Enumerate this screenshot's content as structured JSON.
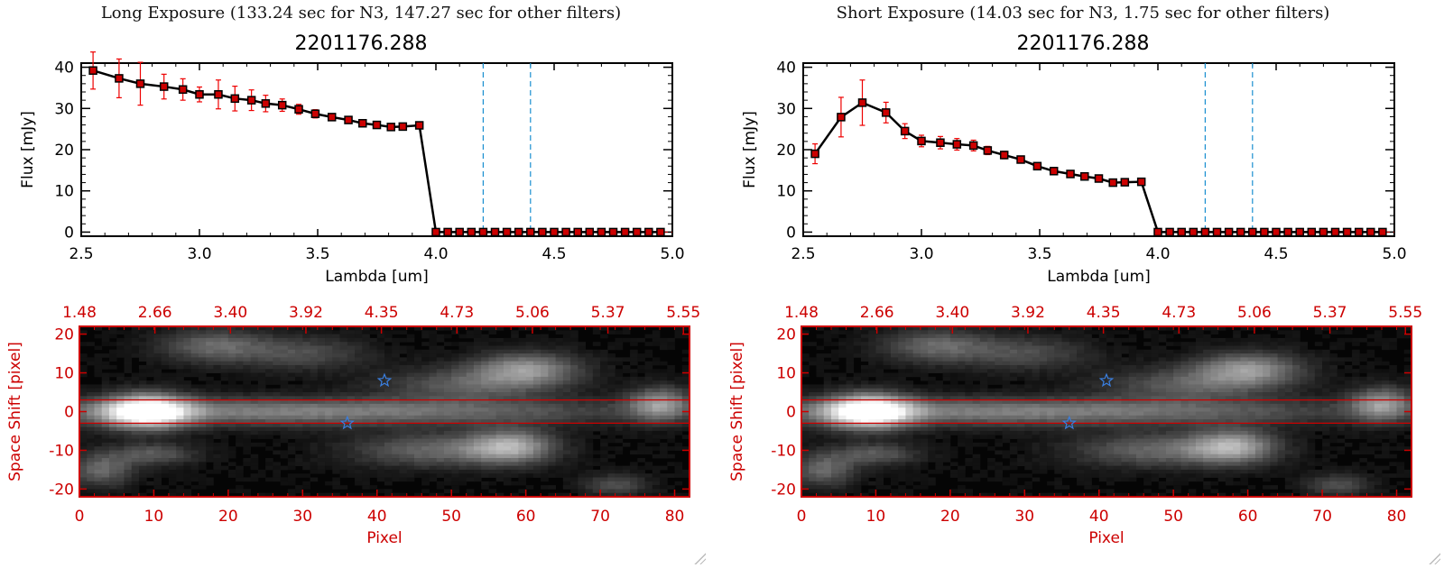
{
  "panels": [
    {
      "exposure_title": "Long Exposure (133.24 sec for N3, 147.27 sec for other filters)",
      "object_title": "2201176.288"
    },
    {
      "exposure_title": "Short Exposure (14.03 sec for N3, 1.75 sec for other filters)",
      "object_title": "2201176.288"
    }
  ],
  "colors": {
    "line": "#000000",
    "marker": "#cc0000",
    "errorbar": "#ee0000",
    "vline": "#1a8fd0",
    "image_axis": "#cc0000",
    "star": "#3a7fe0",
    "aperture": "#cc0000"
  },
  "chart_data": [
    {
      "type": "line",
      "panel": "long",
      "xlabel": "Lambda [um]",
      "ylabel": "Flux [mJy]",
      "xlim": [
        2.5,
        5.0
      ],
      "ylim": [
        -1,
        41
      ],
      "xticks": [
        "2.5",
        "3.0",
        "3.5",
        "4.0",
        "4.5",
        "5.0"
      ],
      "yticks": [
        "0",
        "10",
        "20",
        "30",
        "40"
      ],
      "vlines": [
        4.2,
        4.4
      ],
      "x": [
        2.55,
        2.66,
        2.75,
        2.85,
        2.93,
        3.0,
        3.08,
        3.15,
        3.22,
        3.28,
        3.35,
        3.42,
        3.49,
        3.56,
        3.63,
        3.69,
        3.75,
        3.81,
        3.86,
        3.93,
        4.0,
        4.05,
        4.1,
        4.15,
        4.2,
        4.25,
        4.3,
        4.35,
        4.4,
        4.45,
        4.5,
        4.55,
        4.6,
        4.65,
        4.7,
        4.75,
        4.8,
        4.85,
        4.9,
        4.95
      ],
      "y": [
        39.2,
        37.3,
        36.0,
        35.3,
        34.6,
        33.4,
        33.4,
        32.4,
        32.0,
        31.2,
        30.8,
        29.8,
        28.7,
        27.9,
        27.2,
        26.4,
        26.0,
        25.5,
        25.6,
        25.9,
        0,
        0,
        0,
        0,
        0,
        0,
        0,
        0,
        0,
        0,
        0,
        0,
        0,
        0,
        0,
        0,
        0,
        0,
        0,
        0
      ],
      "err": [
        4.5,
        4.7,
        5.2,
        3.0,
        2.6,
        1.8,
        3.5,
        3.0,
        2.5,
        2.0,
        1.5,
        1.2,
        1.0,
        0.8,
        0.7,
        0.6,
        0.6,
        0.5,
        0.6,
        0.7,
        0,
        0,
        0,
        0,
        0,
        0,
        0,
        0,
        0,
        0,
        0,
        0,
        0,
        0,
        0,
        0,
        0,
        0,
        0,
        0
      ]
    },
    {
      "type": "line",
      "panel": "short",
      "xlabel": "Lambda [um]",
      "ylabel": "Flux [mJy]",
      "xlim": [
        2.5,
        5.0
      ],
      "ylim": [
        -1,
        41
      ],
      "xticks": [
        "2.5",
        "3.0",
        "3.5",
        "4.0",
        "4.5",
        "5.0"
      ],
      "yticks": [
        "0",
        "10",
        "20",
        "30",
        "40"
      ],
      "vlines": [
        4.2,
        4.4
      ],
      "x": [
        2.55,
        2.66,
        2.75,
        2.85,
        2.93,
        3.0,
        3.08,
        3.15,
        3.22,
        3.28,
        3.35,
        3.42,
        3.49,
        3.56,
        3.63,
        3.69,
        3.75,
        3.81,
        3.86,
        3.93,
        4.0,
        4.05,
        4.1,
        4.15,
        4.2,
        4.25,
        4.3,
        4.35,
        4.4,
        4.45,
        4.5,
        4.55,
        4.6,
        4.65,
        4.7,
        4.75,
        4.8,
        4.85,
        4.9,
        4.95
      ],
      "y": [
        19.0,
        27.9,
        31.4,
        29.0,
        24.5,
        22.1,
        21.7,
        21.3,
        21.0,
        19.8,
        18.7,
        17.6,
        16.0,
        14.8,
        14.1,
        13.5,
        13.0,
        12.0,
        12.1,
        12.2,
        0,
        0,
        0,
        0,
        0,
        0,
        0,
        0,
        0,
        0,
        0,
        0,
        0,
        0,
        0,
        0,
        0,
        0,
        0,
        0
      ],
      "err": [
        2.4,
        4.8,
        5.5,
        2.5,
        1.8,
        1.4,
        1.5,
        1.4,
        1.3,
        1.0,
        0.9,
        0.7,
        0.6,
        0.5,
        0.5,
        0.5,
        0.4,
        0.4,
        0.4,
        0.5,
        0,
        0,
        0,
        0,
        0,
        0,
        0,
        0,
        0,
        0,
        0,
        0,
        0,
        0,
        0,
        0,
        0,
        0,
        0,
        0
      ]
    },
    {
      "type": "heatmap",
      "panel": "long",
      "xlabel": "Pixel",
      "ylabel": "Space Shift [pixel]",
      "xlim": [
        0,
        82
      ],
      "ylim": [
        -22,
        22
      ],
      "xticks": [
        "0",
        "10",
        "20",
        "30",
        "40",
        "50",
        "60",
        "70",
        "80"
      ],
      "yticks": [
        "-20",
        "-10",
        "0",
        "10",
        "20"
      ],
      "top_ticks": [
        "1.48",
        "2.66",
        "3.40",
        "3.92",
        "4.35",
        "4.73",
        "5.06",
        "5.37",
        "5.55"
      ],
      "aperture_rows": [
        3,
        -3
      ],
      "stars": [
        {
          "x": 41,
          "y": 8
        },
        {
          "x": 36,
          "y": -3
        }
      ],
      "blobs": [
        {
          "x": 9,
          "y": 0,
          "peak": 1.0,
          "sx": 4,
          "sy": 3
        },
        {
          "x": 30,
          "y": 0,
          "peak": 0.45,
          "sx": 30,
          "sy": 2.5
        },
        {
          "x": 18,
          "y": 17,
          "peak": 0.35,
          "sx": 5,
          "sy": 3
        },
        {
          "x": 60,
          "y": 11,
          "peak": 0.5,
          "sx": 5,
          "sy": 3
        },
        {
          "x": 52,
          "y": 7,
          "peak": 0.3,
          "sx": 8,
          "sy": 3
        },
        {
          "x": 58,
          "y": -9,
          "peak": 0.55,
          "sx": 4,
          "sy": 3
        },
        {
          "x": 48,
          "y": -10,
          "peak": 0.35,
          "sx": 8,
          "sy": 3
        },
        {
          "x": 78,
          "y": 2,
          "peak": 0.5,
          "sx": 3,
          "sy": 3
        },
        {
          "x": 3,
          "y": -15,
          "peak": 0.35,
          "sx": 3,
          "sy": 3
        },
        {
          "x": 30,
          "y": 15,
          "peak": 0.25,
          "sx": 6,
          "sy": 3
        },
        {
          "x": 10,
          "y": -11,
          "peak": 0.3,
          "sx": 4,
          "sy": 2
        },
        {
          "x": 72,
          "y": -19,
          "peak": 0.25,
          "sx": 3,
          "sy": 2
        }
      ]
    },
    {
      "type": "heatmap",
      "panel": "short",
      "xlabel": "Pixel",
      "ylabel": "Space Shift [pixel]",
      "xlim": [
        0,
        82
      ],
      "ylim": [
        -22,
        22
      ],
      "xticks": [
        "0",
        "10",
        "20",
        "30",
        "40",
        "50",
        "60",
        "70",
        "80"
      ],
      "yticks": [
        "-20",
        "-10",
        "0",
        "10",
        "20"
      ],
      "top_ticks": [
        "1.48",
        "2.66",
        "3.40",
        "3.92",
        "4.35",
        "4.73",
        "5.06",
        "5.37",
        "5.55"
      ],
      "aperture_rows": [
        3,
        -3
      ],
      "stars": [
        {
          "x": 41,
          "y": 8
        },
        {
          "x": 36,
          "y": -3
        }
      ],
      "blobs": [
        {
          "x": 9,
          "y": 0,
          "peak": 1.0,
          "sx": 4,
          "sy": 3
        },
        {
          "x": 30,
          "y": 0,
          "peak": 0.45,
          "sx": 30,
          "sy": 2.5
        },
        {
          "x": 18,
          "y": 17,
          "peak": 0.35,
          "sx": 5,
          "sy": 3
        },
        {
          "x": 60,
          "y": 11,
          "peak": 0.5,
          "sx": 5,
          "sy": 3
        },
        {
          "x": 52,
          "y": 7,
          "peak": 0.3,
          "sx": 8,
          "sy": 3
        },
        {
          "x": 58,
          "y": -9,
          "peak": 0.55,
          "sx": 4,
          "sy": 3
        },
        {
          "x": 48,
          "y": -10,
          "peak": 0.35,
          "sx": 8,
          "sy": 3
        },
        {
          "x": 78,
          "y": 2,
          "peak": 0.5,
          "sx": 3,
          "sy": 3
        },
        {
          "x": 3,
          "y": -15,
          "peak": 0.35,
          "sx": 3,
          "sy": 3
        },
        {
          "x": 30,
          "y": 15,
          "peak": 0.25,
          "sx": 6,
          "sy": 3
        },
        {
          "x": 10,
          "y": -11,
          "peak": 0.3,
          "sx": 4,
          "sy": 2
        },
        {
          "x": 72,
          "y": -19,
          "peak": 0.25,
          "sx": 3,
          "sy": 2
        }
      ]
    }
  ]
}
